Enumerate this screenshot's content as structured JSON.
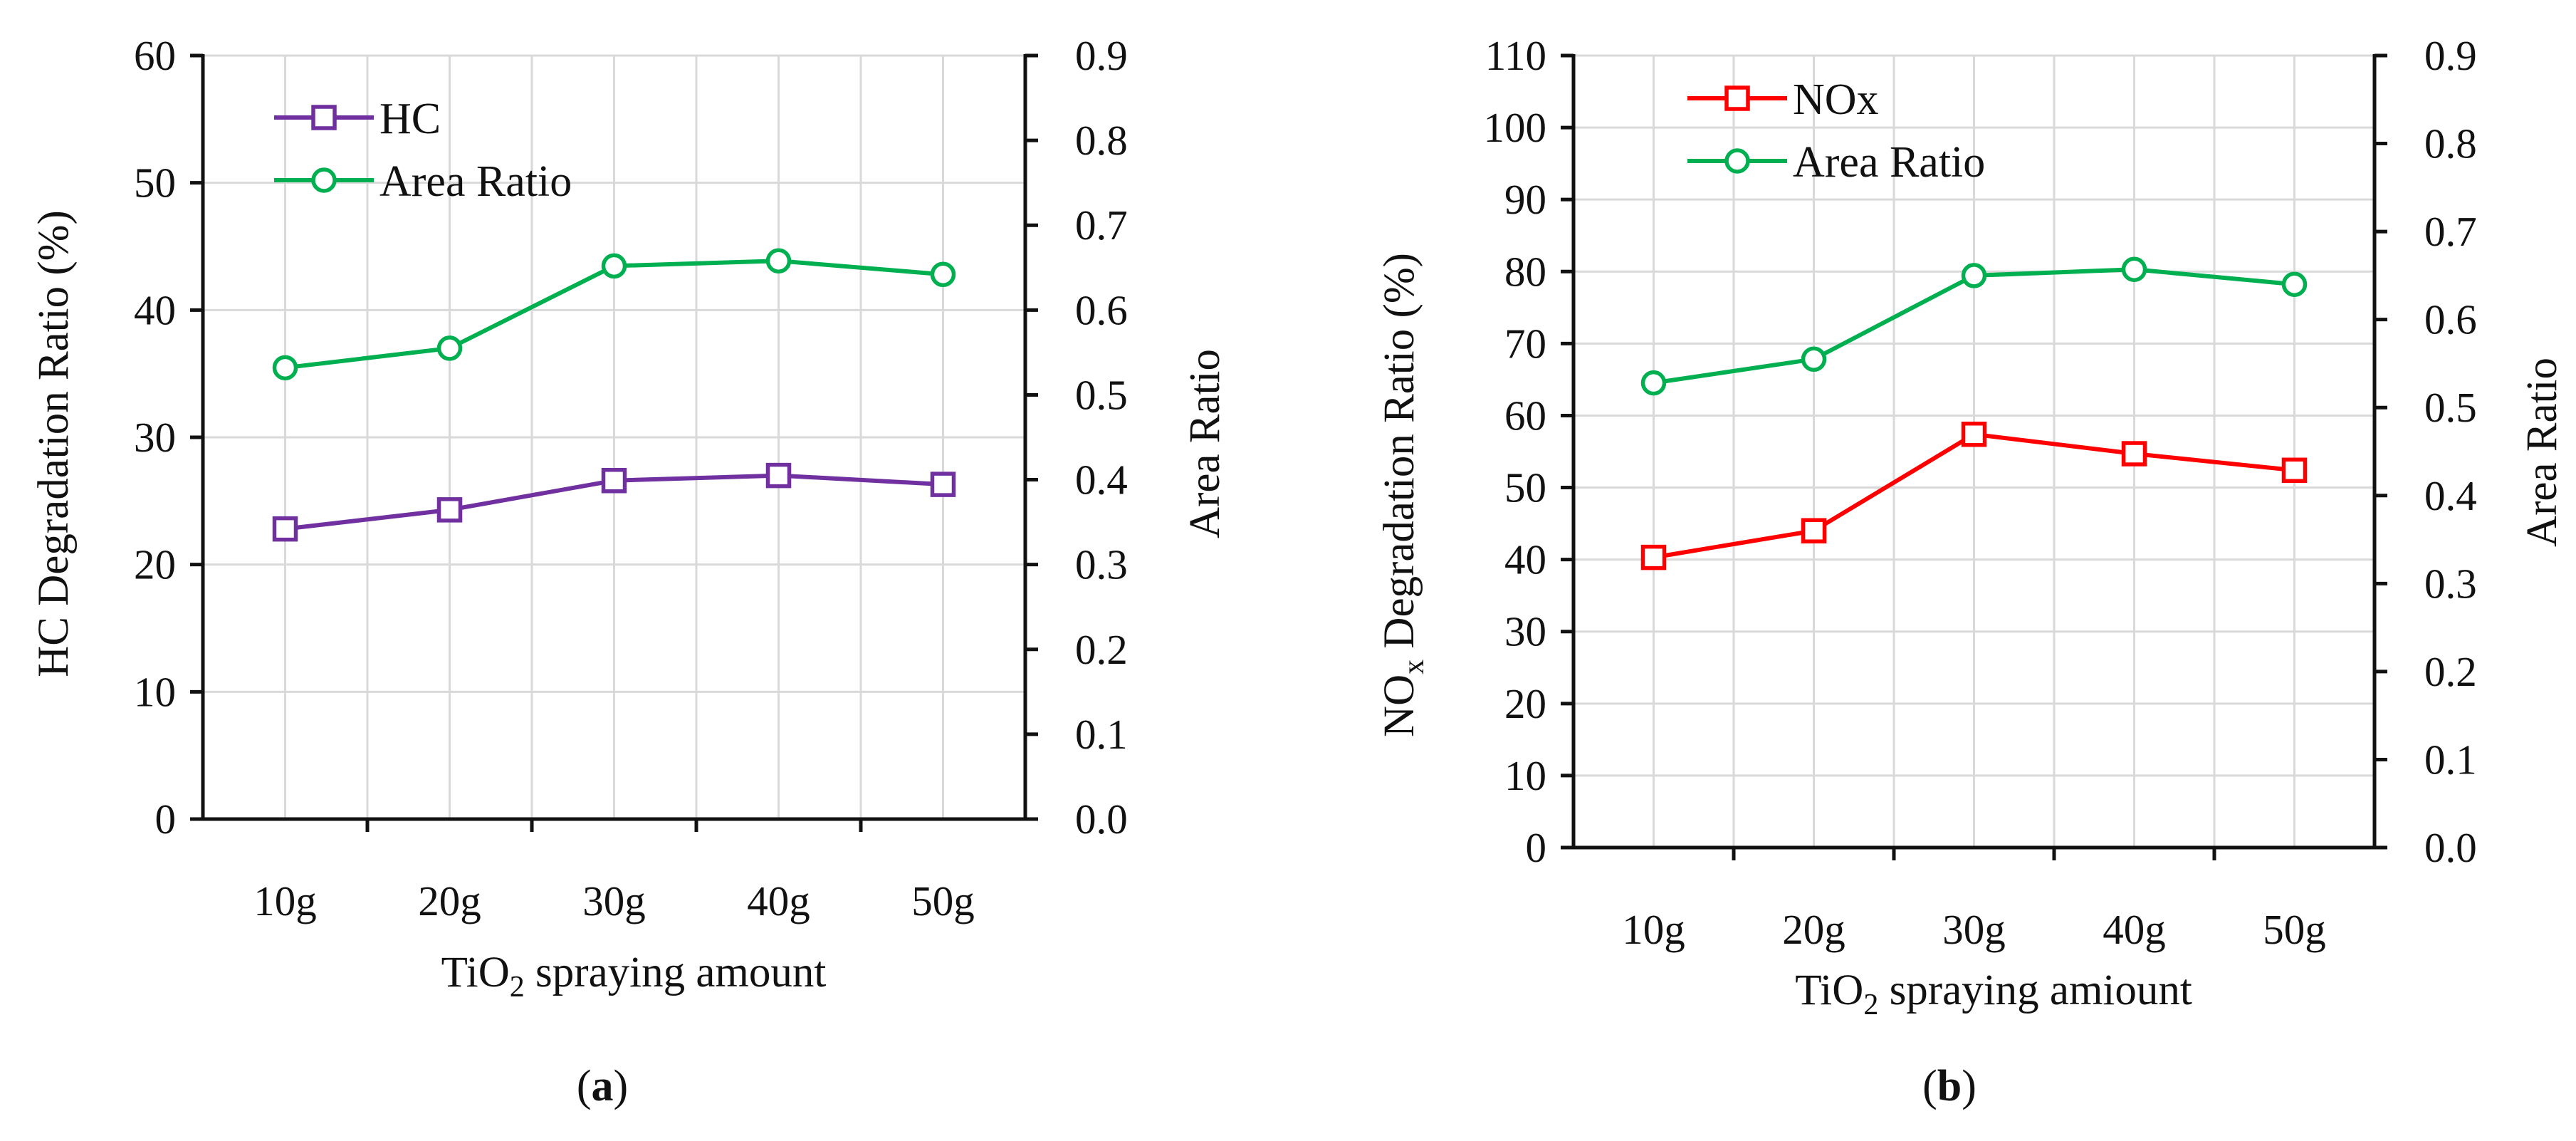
{
  "colors": {
    "hc": "#7030a0",
    "nox": "#ff0000",
    "area": "#00b050",
    "axis": "#111111",
    "grid": "#d9d9d9"
  },
  "chart_data": [
    {
      "type": "line",
      "panel_label": "a",
      "categories": [
        "10g",
        "20g",
        "30g",
        "40g",
        "50g"
      ],
      "xlabel_pre": "TiO",
      "xlabel_sub": "2",
      "xlabel_post": " spraying amount",
      "ylabel": "HC  Degradation Ratio (%)",
      "y2label": "Area Ratio",
      "ylim": [
        0,
        60
      ],
      "yticks": [
        "0",
        "10",
        "20",
        "30",
        "40",
        "50",
        "60"
      ],
      "y2lim": [
        0.0,
        0.9
      ],
      "y2ticks": [
        "0.0",
        "0.1",
        "0.2",
        "0.3",
        "0.4",
        "0.5",
        "0.6",
        "0.7",
        "0.8",
        "0.9"
      ],
      "series": [
        {
          "name": "HC",
          "axis": "left",
          "marker": "square",
          "color": "#7030a0",
          "values": [
            22.8,
            24.3,
            26.6,
            27.0,
            26.3
          ]
        },
        {
          "name": "Area Ratio",
          "axis": "right",
          "marker": "circle",
          "color": "#00b050",
          "values": [
            0.532,
            0.555,
            0.652,
            0.658,
            0.642
          ]
        }
      ]
    },
    {
      "type": "line",
      "panel_label": "b",
      "categories": [
        "10g",
        "20g",
        "30g",
        "40g",
        "50g"
      ],
      "xlabel_pre": "TiO",
      "xlabel_sub": "2",
      "xlabel_post": " spraying amiount",
      "ylabel_pre": "NO",
      "ylabel_sub": "x",
      "ylabel_post": "  Degradation Ratio (%)",
      "y2label": "Area Ratio",
      "ylim": [
        0,
        110
      ],
      "yticks": [
        "0",
        "10",
        "20",
        "30",
        "40",
        "50",
        "60",
        "70",
        "80",
        "90",
        "100",
        "110"
      ],
      "y2lim": [
        0.0,
        0.9
      ],
      "y2ticks": [
        "0.0",
        "0.1",
        "0.2",
        "0.3",
        "0.4",
        "0.5",
        "0.6",
        "0.7",
        "0.8",
        "0.9"
      ],
      "series": [
        {
          "name": "NOx",
          "axis": "left",
          "marker": "square",
          "color": "#ff0000",
          "values": [
            40.3,
            44.0,
            57.4,
            54.7,
            52.4
          ]
        },
        {
          "name": "Area Ratio",
          "axis": "right",
          "marker": "circle",
          "color": "#00b050",
          "values": [
            0.528,
            0.555,
            0.65,
            0.657,
            0.64
          ]
        }
      ]
    }
  ]
}
